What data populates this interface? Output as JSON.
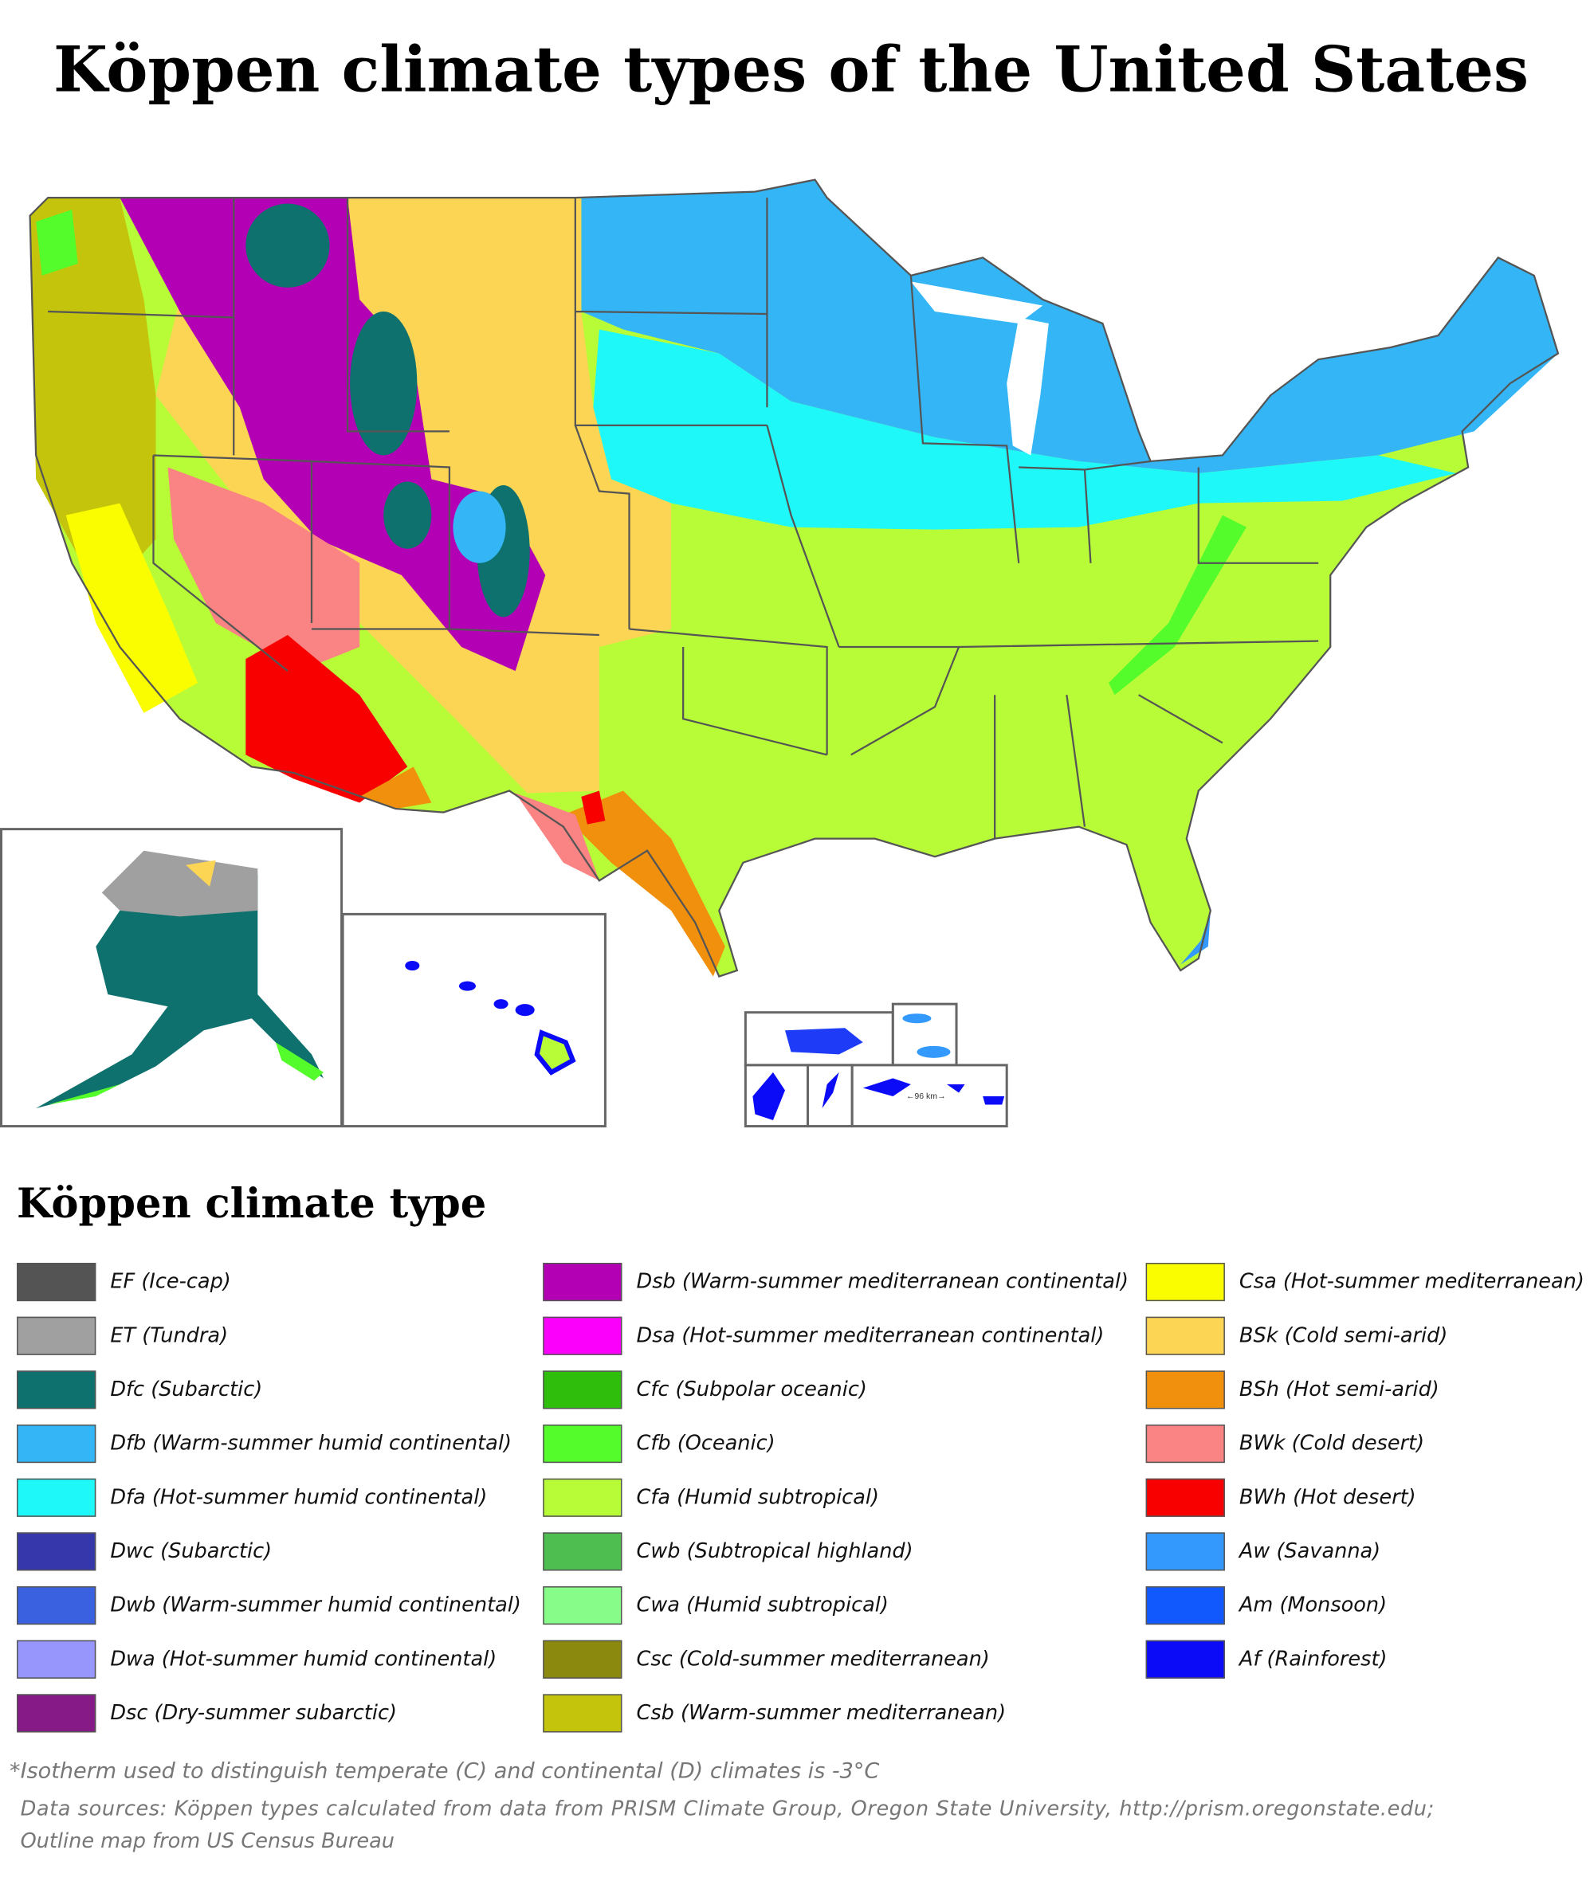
{
  "title": "Köppen climate types of the United States",
  "legend": {
    "title": "Köppen climate type",
    "columns": [
      [
        {
          "label": "EF (Ice-cap)",
          "color": "#545454"
        },
        {
          "label": "ET (Tundra)",
          "color": "#a0a0a0"
        },
        {
          "label": "Dfc (Subarctic)",
          "color": "#0f716e"
        },
        {
          "label": "Dfb (Warm-summer humid continental)",
          "color": "#34b6f6"
        },
        {
          "label": "Dfa (Hot-summer humid continental)",
          "color": "#1ef8f8"
        },
        {
          "label": "Dwc (Subarctic)",
          "color": "#3737ac"
        },
        {
          "label": "Dwb (Warm-summer humid continental)",
          "color": "#3a62e0"
        },
        {
          "label": "Dwa (Hot-summer humid continental)",
          "color": "#9696fc"
        },
        {
          "label": "Dsc (Dry-summer subarctic)",
          "color": "#861a86"
        }
      ],
      [
        {
          "label": "Dsb (Warm-summer mediterranean continental)",
          "color": "#b400b4"
        },
        {
          "label": "Dsa (Hot-summer mediterranean continental)",
          "color": "#fb00fb"
        },
        {
          "label": "Cfc (Subpolar oceanic)",
          "color": "#2fbe0c"
        },
        {
          "label": "Cfb (Oceanic)",
          "color": "#54fc2c"
        },
        {
          "label": "Cfa (Humid subtropical)",
          "color": "#b8fc38"
        },
        {
          "label": "Cwb (Subtropical highland)",
          "color": "#4fbe50"
        },
        {
          "label": "Cwa (Humid subtropical)",
          "color": "#88fc88"
        },
        {
          "label": "Csc (Cold-summer mediterranean)",
          "color": "#8c8a0e"
        },
        {
          "label": "Csb (Warm-summer mediterranean)",
          "color": "#c4c40c"
        }
      ],
      [
        {
          "label": "Csa (Hot-summer mediterranean)",
          "color": "#fafc00"
        },
        {
          "label": "BSk (Cold semi-arid)",
          "color": "#fcd555"
        },
        {
          "label": "BSh (Hot semi-arid)",
          "color": "#f0900c"
        },
        {
          "label": "BWk (Cold desert)",
          "color": "#fa8383"
        },
        {
          "label": "BWh (Hot desert)",
          "color": "#f80000"
        },
        {
          "label": "Aw (Savanna)",
          "color": "#3399fc"
        },
        {
          "label": "Am (Monsoon)",
          "color": "#1159fc"
        },
        {
          "label": "Af (Rainforest)",
          "color": "#0b0bf8"
        }
      ]
    ]
  },
  "scale_label": "←96 km→",
  "footnote": "*Isotherm used to distinguish temperate (C) and continental (D) climates is -3°C",
  "sources_line1": "Data sources: Köppen types calculated from data from PRISM Climate Group, Oregon State University, http://prism.oregonstate.edu;",
  "sources_line2": "Outline map from US Census Bureau"
}
